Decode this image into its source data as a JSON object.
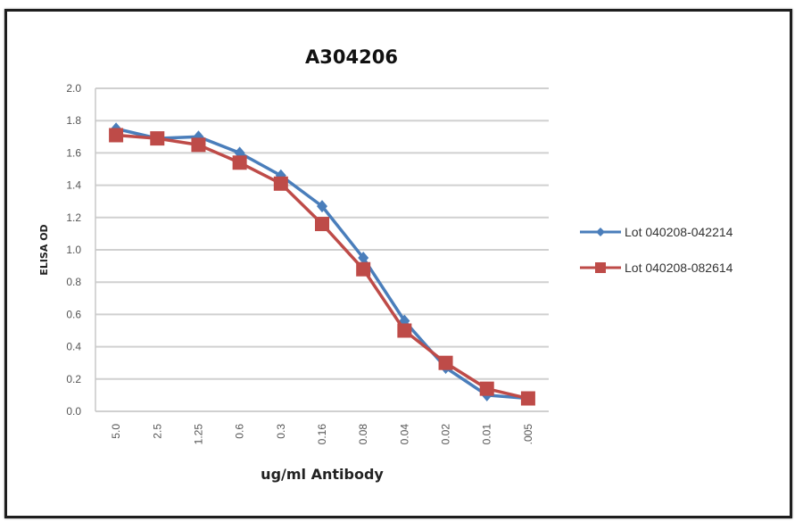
{
  "chart_data": {
    "type": "line",
    "title": "A304206",
    "xlabel": "ug/ml Antibody",
    "ylabel": "ELISA OD",
    "categories": [
      "5.0",
      "2.5",
      "1.25",
      "0.6",
      "0.3",
      "0.16",
      "0.08",
      "0.04",
      "0.02",
      "0.01",
      ".005"
    ],
    "yticks": [
      "0.0",
      "0.2",
      "0.4",
      "0.6",
      "0.8",
      "1.0",
      "1.2",
      "1.4",
      "1.6",
      "1.8",
      "2.0"
    ],
    "ylim": [
      0,
      2.0
    ],
    "grid": true,
    "legend_position": "right",
    "series": [
      {
        "name": "Lot 040208-042214",
        "color": "#4a7ebb",
        "marker": "diamond",
        "values": [
          1.75,
          1.69,
          1.7,
          1.6,
          1.46,
          1.27,
          0.95,
          0.56,
          0.27,
          0.1,
          0.08
        ]
      },
      {
        "name": "Lot 040208-082614",
        "color": "#be4b48",
        "marker": "square",
        "values": [
          1.71,
          1.69,
          1.65,
          1.54,
          1.41,
          1.16,
          0.88,
          0.5,
          0.3,
          0.14,
          0.08
        ]
      }
    ]
  }
}
